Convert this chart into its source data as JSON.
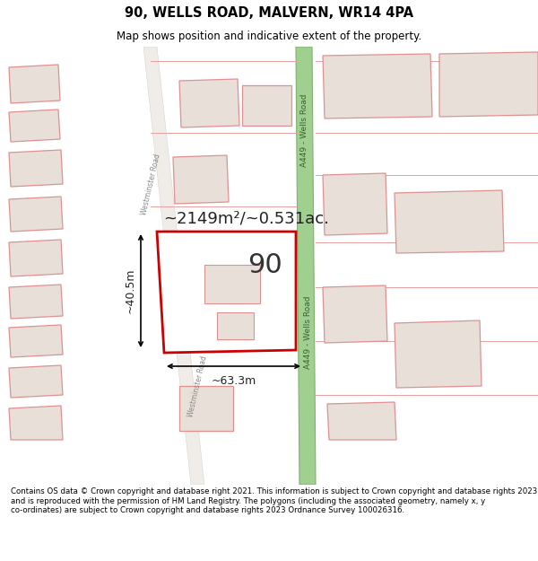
{
  "title": "90, WELLS ROAD, MALVERN, WR14 4PA",
  "subtitle": "Map shows position and indicative extent of the property.",
  "footer": "Contains OS data © Crown copyright and database right 2021. This information is subject to Crown copyright and database rights 2023 and is reproduced with the permission of HM Land Registry. The polygons (including the associated geometry, namely x, y co-ordinates) are subject to Crown copyright and database rights 2023 Ordnance Survey 100026316.",
  "map_bg": "#ffffff",
  "building_fill": "#e8e0d8",
  "building_edge": "#e09090",
  "highlight_fill": "#ffffff",
  "highlight_edge": "#cc0000",
  "road_green_fill": "#a0d090",
  "road_green_edge": "#80b070",
  "area_label": "~2149m²/~0.531ac.",
  "number_label": "90",
  "dim_width": "~63.3m",
  "dim_height": "~40.5m",
  "road_label_top": "A449 - Wells Road",
  "road_label_bottom": "A449 - Wells Road",
  "westminster_label": "Westminster Road",
  "westminster_label2": "Westminster Road"
}
